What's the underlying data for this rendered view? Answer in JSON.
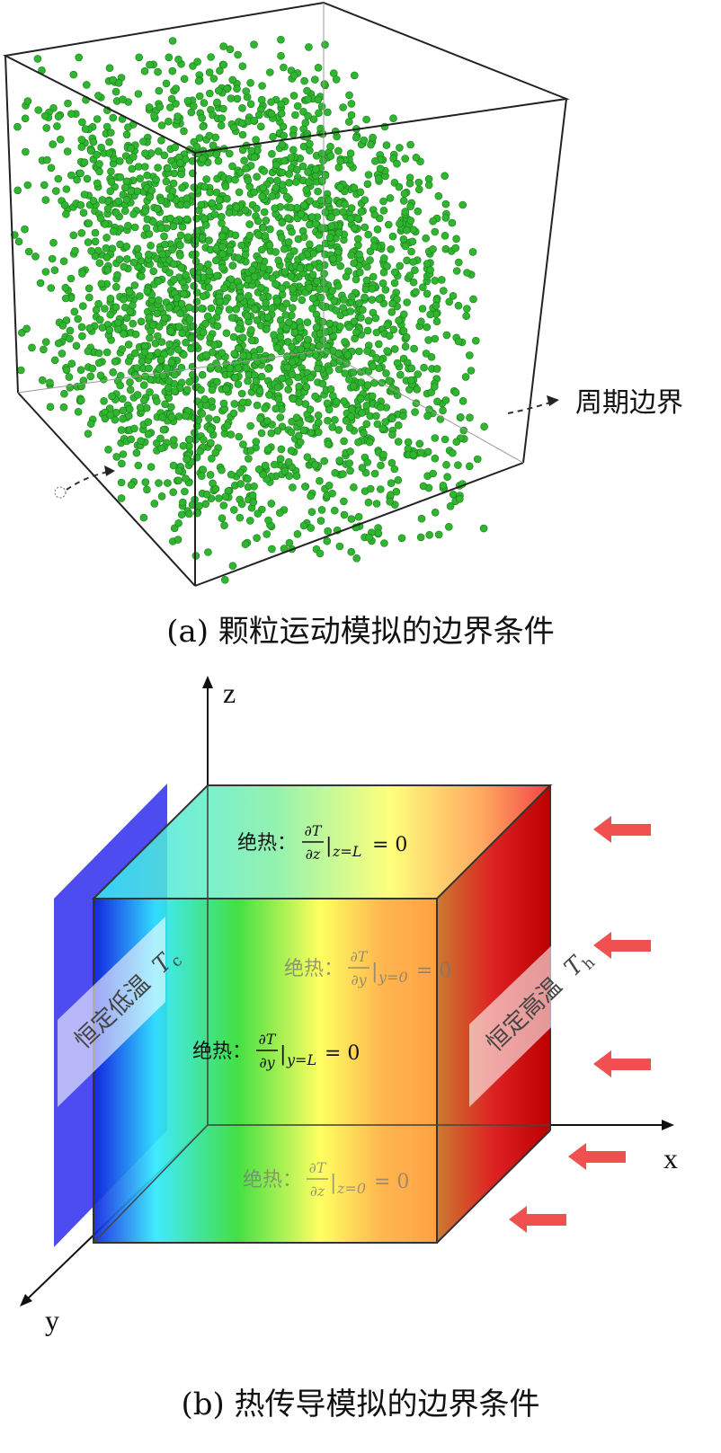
{
  "panel_a": {
    "caption": "(a) 颗粒运动模拟的边界条件",
    "boundary_label": "周期边界",
    "particle_color": "#2fb52f"
  },
  "panel_b": {
    "caption": "(b) 热传导模拟的边界条件",
    "axes": {
      "z": "z",
      "x": "x",
      "y": "y"
    },
    "cold_plane_label": "恒定低温",
    "cold_symbol": "T",
    "cold_subscript": "c",
    "hot_plane_label": "恒定高温",
    "hot_symbol": "T",
    "hot_subscript": "h",
    "adiabatic_word": "绝热：",
    "conditions": {
      "top": {
        "numerator": "∂T",
        "denominator": "∂z",
        "subscript": "z=L",
        "rhs": "= 0"
      },
      "back": {
        "numerator": "∂T",
        "denominator": "∂y",
        "subscript": "y=0",
        "rhs": "= 0"
      },
      "front": {
        "numerator": "∂T",
        "denominator": "∂y",
        "subscript": "y=L",
        "rhs": "= 0"
      },
      "bottom": {
        "numerator": "∂T",
        "denominator": "∂z",
        "subscript": "z=0",
        "rhs": "= 0"
      }
    },
    "colors": {
      "cold_plane": "#3333ee",
      "hot_arrow": "#f05050",
      "gradient": [
        "#1020e0",
        "#30e8ff",
        "#33dd33",
        "#ffff55",
        "#ff9933",
        "#dd0000"
      ]
    }
  }
}
